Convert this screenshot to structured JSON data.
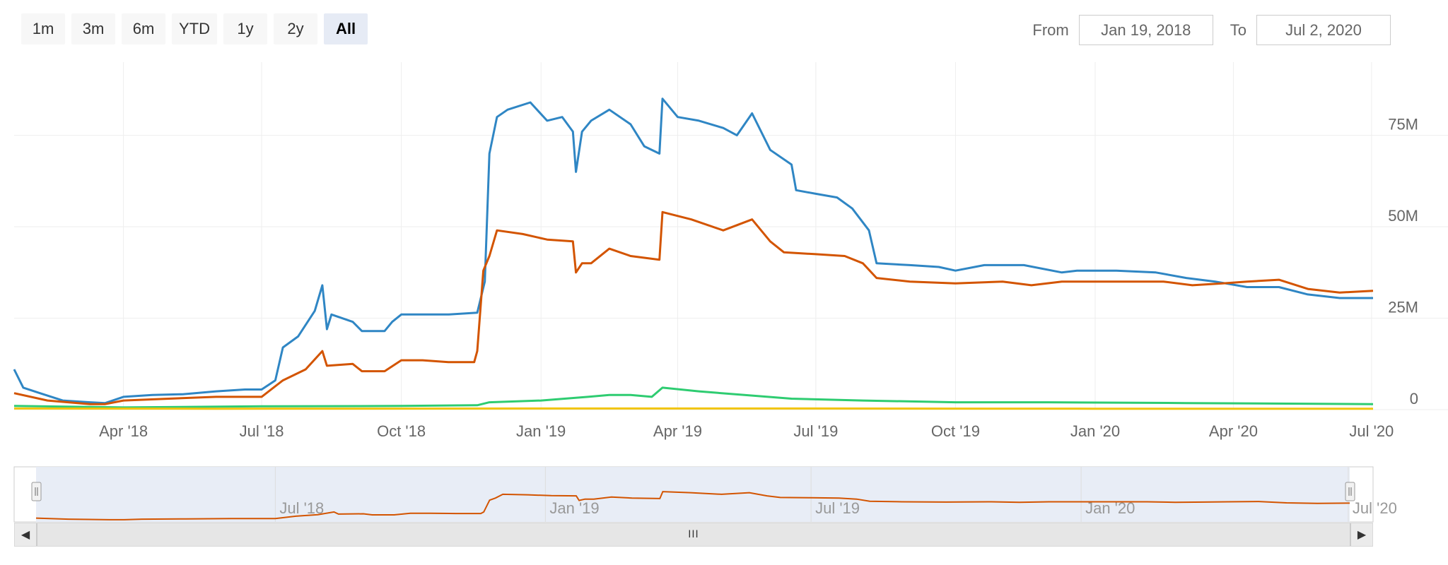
{
  "range_selector": {
    "buttons": [
      "1m",
      "3m",
      "6m",
      "YTD",
      "1y",
      "2y",
      "All"
    ],
    "selected": "All"
  },
  "date_range": {
    "from_label": "From",
    "from_value": "Jan 19, 2018",
    "to_label": "To",
    "to_value": "Jul 2, 2020"
  },
  "chart_data": {
    "type": "line",
    "title": "",
    "xlabel": "",
    "ylabel": "",
    "x_range": [
      "2018-01-19",
      "2020-07-02"
    ],
    "ylim": [
      0,
      95000000
    ],
    "y_ticks": [
      {
        "value": 0,
        "label": "0"
      },
      {
        "value": 25000000,
        "label": "25M"
      },
      {
        "value": 50000000,
        "label": "50M"
      },
      {
        "value": 75000000,
        "label": "75M"
      }
    ],
    "x_ticks": [
      {
        "date": "2018-04-01",
        "label": "Apr '18"
      },
      {
        "date": "2018-07-01",
        "label": "Jul '18"
      },
      {
        "date": "2018-10-01",
        "label": "Oct '18"
      },
      {
        "date": "2019-01-01",
        "label": "Jan '19"
      },
      {
        "date": "2019-04-01",
        "label": "Apr '19"
      },
      {
        "date": "2019-07-01",
        "label": "Jul '19"
      },
      {
        "date": "2019-10-01",
        "label": "Oct '19"
      },
      {
        "date": "2020-01-01",
        "label": "Jan '20"
      },
      {
        "date": "2020-04-01",
        "label": "Apr '20"
      },
      {
        "date": "2020-07-01",
        "label": "Jul '20"
      }
    ],
    "grid": true,
    "series": [
      {
        "color": "#2f86c4",
        "points": [
          [
            "2018-01-19",
            11000000
          ],
          [
            "2018-01-25",
            6000000
          ],
          [
            "2018-02-05",
            4500000
          ],
          [
            "2018-02-20",
            2500000
          ],
          [
            "2018-03-10",
            2000000
          ],
          [
            "2018-03-20",
            1800000
          ],
          [
            "2018-04-01",
            3500000
          ],
          [
            "2018-04-20",
            4000000
          ],
          [
            "2018-05-10",
            4200000
          ],
          [
            "2018-06-01",
            5000000
          ],
          [
            "2018-06-20",
            5500000
          ],
          [
            "2018-07-01",
            5500000
          ],
          [
            "2018-07-10",
            8000000
          ],
          [
            "2018-07-15",
            17000000
          ],
          [
            "2018-07-25",
            20000000
          ],
          [
            "2018-08-05",
            27000000
          ],
          [
            "2018-08-10",
            34000000
          ],
          [
            "2018-08-13",
            22000000
          ],
          [
            "2018-08-16",
            26000000
          ],
          [
            "2018-08-30",
            24000000
          ],
          [
            "2018-09-05",
            21500000
          ],
          [
            "2018-09-20",
            21500000
          ],
          [
            "2018-09-25",
            24000000
          ],
          [
            "2018-10-01",
            26000000
          ],
          [
            "2018-10-15",
            26000000
          ],
          [
            "2018-11-01",
            26000000
          ],
          [
            "2018-11-20",
            26500000
          ],
          [
            "2018-11-25",
            35000000
          ],
          [
            "2018-11-28",
            70000000
          ],
          [
            "2018-12-03",
            80000000
          ],
          [
            "2018-12-10",
            82000000
          ],
          [
            "2018-12-25",
            84000000
          ],
          [
            "2019-01-05",
            79000000
          ],
          [
            "2019-01-15",
            80000000
          ],
          [
            "2019-01-22",
            76000000
          ],
          [
            "2019-01-24",
            65000000
          ],
          [
            "2019-01-28",
            76000000
          ],
          [
            "2019-02-03",
            79000000
          ],
          [
            "2019-02-15",
            82000000
          ],
          [
            "2019-03-01",
            78000000
          ],
          [
            "2019-03-10",
            72000000
          ],
          [
            "2019-03-20",
            70000000
          ],
          [
            "2019-03-22",
            85000000
          ],
          [
            "2019-04-01",
            80000000
          ],
          [
            "2019-04-15",
            79000000
          ],
          [
            "2019-05-01",
            77000000
          ],
          [
            "2019-05-10",
            75000000
          ],
          [
            "2019-05-20",
            81000000
          ],
          [
            "2019-06-01",
            71000000
          ],
          [
            "2019-06-15",
            67000000
          ],
          [
            "2019-06-18",
            60000000
          ],
          [
            "2019-07-01",
            59000000
          ],
          [
            "2019-07-15",
            58000000
          ],
          [
            "2019-07-25",
            55000000
          ],
          [
            "2019-08-05",
            49000000
          ],
          [
            "2019-08-10",
            40000000
          ],
          [
            "2019-09-01",
            39500000
          ],
          [
            "2019-09-20",
            39000000
          ],
          [
            "2019-10-01",
            38000000
          ],
          [
            "2019-10-20",
            39500000
          ],
          [
            "2019-11-15",
            39500000
          ],
          [
            "2019-12-10",
            37500000
          ],
          [
            "2019-12-20",
            38000000
          ],
          [
            "2020-01-15",
            38000000
          ],
          [
            "2020-02-10",
            37500000
          ],
          [
            "2020-03-01",
            36000000
          ],
          [
            "2020-03-20",
            35000000
          ],
          [
            "2020-04-10",
            33500000
          ],
          [
            "2020-05-01",
            33500000
          ],
          [
            "2020-05-20",
            31500000
          ],
          [
            "2020-06-10",
            30500000
          ],
          [
            "2020-07-02",
            30500000
          ]
        ]
      },
      {
        "color": "#d35400",
        "points": [
          [
            "2018-01-19",
            4500000
          ],
          [
            "2018-02-10",
            2500000
          ],
          [
            "2018-03-10",
            1500000
          ],
          [
            "2018-03-20",
            1500000
          ],
          [
            "2018-04-01",
            2500000
          ],
          [
            "2018-05-01",
            3000000
          ],
          [
            "2018-06-01",
            3500000
          ],
          [
            "2018-07-01",
            3500000
          ],
          [
            "2018-07-15",
            8000000
          ],
          [
            "2018-07-30",
            11000000
          ],
          [
            "2018-08-10",
            16000000
          ],
          [
            "2018-08-13",
            12000000
          ],
          [
            "2018-08-30",
            12500000
          ],
          [
            "2018-09-05",
            10500000
          ],
          [
            "2018-09-20",
            10500000
          ],
          [
            "2018-10-01",
            13500000
          ],
          [
            "2018-10-15",
            13500000
          ],
          [
            "2018-11-01",
            13000000
          ],
          [
            "2018-11-18",
            13000000
          ],
          [
            "2018-11-20",
            16000000
          ],
          [
            "2018-11-24",
            38000000
          ],
          [
            "2018-11-28",
            42000000
          ],
          [
            "2018-12-03",
            49000000
          ],
          [
            "2018-12-20",
            48000000
          ],
          [
            "2019-01-05",
            46500000
          ],
          [
            "2019-01-22",
            46000000
          ],
          [
            "2019-01-24",
            37500000
          ],
          [
            "2019-01-28",
            40000000
          ],
          [
            "2019-02-03",
            40000000
          ],
          [
            "2019-02-15",
            44000000
          ],
          [
            "2019-03-01",
            42000000
          ],
          [
            "2019-03-20",
            41000000
          ],
          [
            "2019-03-22",
            54000000
          ],
          [
            "2019-04-10",
            52000000
          ],
          [
            "2019-05-01",
            49000000
          ],
          [
            "2019-05-20",
            52000000
          ],
          [
            "2019-06-01",
            46000000
          ],
          [
            "2019-06-10",
            43000000
          ],
          [
            "2019-07-01",
            42500000
          ],
          [
            "2019-07-20",
            42000000
          ],
          [
            "2019-08-01",
            40000000
          ],
          [
            "2019-08-10",
            36000000
          ],
          [
            "2019-09-01",
            35000000
          ],
          [
            "2019-10-01",
            34500000
          ],
          [
            "2019-11-01",
            35000000
          ],
          [
            "2019-11-20",
            34000000
          ],
          [
            "2019-12-10",
            35000000
          ],
          [
            "2020-01-15",
            35000000
          ],
          [
            "2020-02-15",
            35000000
          ],
          [
            "2020-03-05",
            34000000
          ],
          [
            "2020-03-25",
            34500000
          ],
          [
            "2020-04-10",
            35000000
          ],
          [
            "2020-05-01",
            35500000
          ],
          [
            "2020-05-20",
            33000000
          ],
          [
            "2020-06-10",
            32000000
          ],
          [
            "2020-07-02",
            32500000
          ]
        ]
      },
      {
        "color": "#2ecc71",
        "points": [
          [
            "2018-01-19",
            1000000
          ],
          [
            "2018-04-01",
            600000
          ],
          [
            "2018-07-01",
            900000
          ],
          [
            "2018-10-01",
            1000000
          ],
          [
            "2018-11-20",
            1200000
          ],
          [
            "2018-11-28",
            2000000
          ],
          [
            "2019-01-01",
            2500000
          ],
          [
            "2019-02-01",
            3500000
          ],
          [
            "2019-02-15",
            4000000
          ],
          [
            "2019-03-01",
            4000000
          ],
          [
            "2019-03-15",
            3500000
          ],
          [
            "2019-03-22",
            6000000
          ],
          [
            "2019-04-15",
            5000000
          ],
          [
            "2019-05-15",
            4000000
          ],
          [
            "2019-06-15",
            3000000
          ],
          [
            "2019-08-01",
            2500000
          ],
          [
            "2019-10-01",
            2000000
          ],
          [
            "2019-12-01",
            2000000
          ],
          [
            "2020-03-01",
            1800000
          ],
          [
            "2020-07-02",
            1500000
          ]
        ]
      },
      {
        "color": "#f1c40f",
        "points": [
          [
            "2018-01-19",
            300000
          ],
          [
            "2018-06-01",
            250000
          ],
          [
            "2019-01-01",
            300000
          ],
          [
            "2019-06-01",
            300000
          ],
          [
            "2020-01-01",
            250000
          ],
          [
            "2020-07-02",
            250000
          ]
        ]
      }
    ],
    "navigator": {
      "series_color": "#d35400",
      "x_ticks": [
        {
          "date": "2018-07-01",
          "label": "Jul '18"
        },
        {
          "date": "2019-01-01",
          "label": "Jan '19"
        },
        {
          "date": "2019-07-01",
          "label": "Jul '19"
        },
        {
          "date": "2020-01-01",
          "label": "Jan '20"
        },
        {
          "date": "2020-07-01",
          "label": "Jul '20"
        }
      ],
      "selected_range": [
        "2018-01-19",
        "2020-07-02"
      ]
    }
  },
  "scrollbar": {
    "left_arrow_icon": "chevron-left-icon",
    "right_arrow_icon": "chevron-right-icon",
    "grip": "III"
  }
}
